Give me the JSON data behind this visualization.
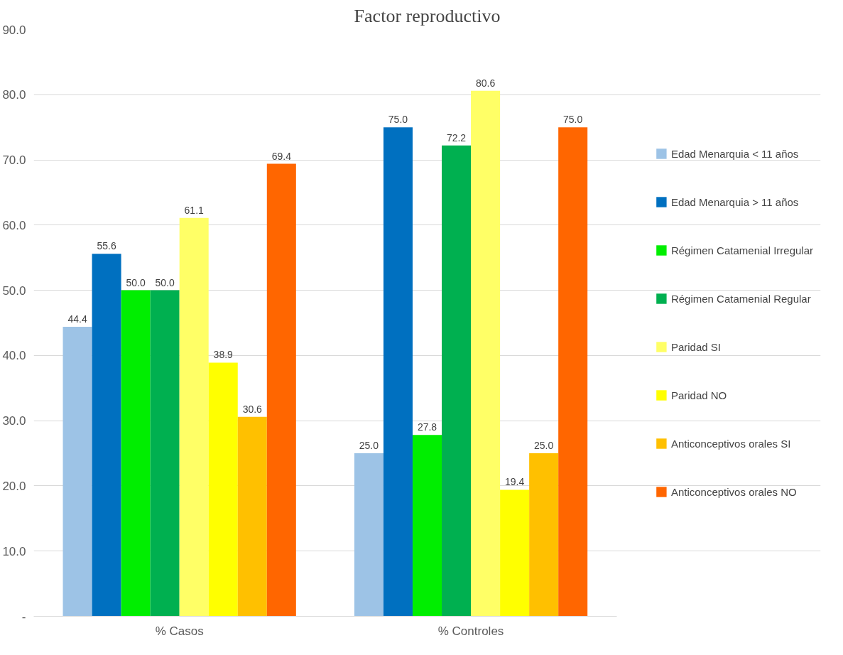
{
  "chart_data": {
    "type": "bar",
    "title": "Factor reproductivo",
    "categories": [
      "% Casos",
      "% Controles"
    ],
    "series": [
      {
        "name": "Edad Menarquia < 11 años",
        "color": "#9dc3e6",
        "values": [
          44.4,
          25.0
        ],
        "value_labels": [
          "44.4",
          "25.0"
        ]
      },
      {
        "name": "Edad Menarquia > 11 años",
        "color": "#0070c0",
        "values": [
          55.6,
          75.0
        ],
        "value_labels": [
          "55.6",
          "75.0"
        ]
      },
      {
        "name": "Régimen Catamenial Irregular",
        "color": "#00ee00",
        "values": [
          50.0,
          27.8
        ],
        "value_labels": [
          "50.0",
          "27.8"
        ]
      },
      {
        "name": "Régimen Catamenial Regular",
        "color": "#00b050",
        "values": [
          50.0,
          72.2
        ],
        "value_labels": [
          "50.0",
          "72.2"
        ]
      },
      {
        "name": "Paridad SI",
        "color": "#ffff66",
        "values": [
          61.1,
          80.6
        ],
        "value_labels": [
          "61.1",
          "80.6"
        ]
      },
      {
        "name": "Paridad NO",
        "color": "#ffff00",
        "values": [
          38.9,
          19.4
        ],
        "value_labels": [
          "38.9",
          "19.4"
        ]
      },
      {
        "name": "Anticonceptivos orales SI",
        "color": "#ffc000",
        "values": [
          30.6,
          25.0
        ],
        "value_labels": [
          "30.6",
          "25.0"
        ]
      },
      {
        "name": "Anticonceptivos orales NO",
        "color": "#ff6600",
        "values": [
          69.4,
          75.0
        ],
        "value_labels": [
          "69.4",
          "75.0"
        ]
      }
    ],
    "ylim": [
      0,
      90
    ],
    "yticks": [
      {
        "value": 0,
        "label": "-"
      },
      {
        "value": 10,
        "label": "10.0"
      },
      {
        "value": 20,
        "label": "20.0"
      },
      {
        "value": 30,
        "label": "30.0"
      },
      {
        "value": 40,
        "label": "40.0"
      },
      {
        "value": 50,
        "label": "50.0"
      },
      {
        "value": 60,
        "label": "60.0"
      },
      {
        "value": 70,
        "label": "70.0"
      },
      {
        "value": 80,
        "label": "80.0"
      },
      {
        "value": 90,
        "label": "90.0"
      }
    ],
    "grid": "y",
    "legend": "right"
  }
}
